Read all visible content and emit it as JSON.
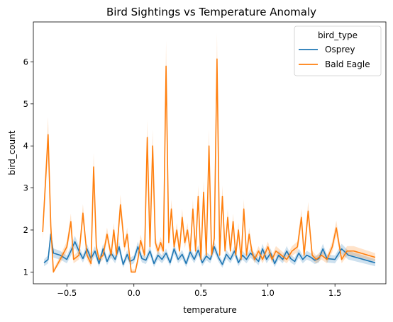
{
  "chart_data": {
    "type": "line",
    "title": "Bird Sightings vs Temperature Anomaly",
    "xlabel": "temperature",
    "ylabel": "bird_count",
    "xlim": [
      -0.75,
      1.88
    ],
    "ylim": [
      0.72,
      6.95
    ],
    "xticks": [
      -0.5,
      0.0,
      0.5,
      1.0,
      1.5
    ],
    "xtick_labels": [
      "−0.5",
      "0.0",
      "0.5",
      "1.0",
      "1.5"
    ],
    "yticks": [
      1,
      2,
      3,
      4,
      5,
      6
    ],
    "ytick_labels": [
      "1",
      "2",
      "3",
      "4",
      "5",
      "6"
    ],
    "grid": false,
    "legend": {
      "title": "bird_type",
      "placement": "top-right"
    },
    "series": [
      {
        "name": "Osprey",
        "color": "#1f77b4",
        "points": [
          [
            -0.67,
            1.22
          ],
          [
            -0.64,
            1.3
          ],
          [
            -0.62,
            1.9
          ],
          [
            -0.6,
            1.45
          ],
          [
            -0.55,
            1.4
          ],
          [
            -0.5,
            1.3
          ],
          [
            -0.47,
            1.5
          ],
          [
            -0.44,
            1.72
          ],
          [
            -0.41,
            1.5
          ],
          [
            -0.38,
            1.32
          ],
          [
            -0.35,
            1.55
          ],
          [
            -0.32,
            1.32
          ],
          [
            -0.29,
            1.5
          ],
          [
            -0.26,
            1.2
          ],
          [
            -0.23,
            1.55
          ],
          [
            -0.2,
            1.25
          ],
          [
            -0.17,
            1.45
          ],
          [
            -0.14,
            1.3
          ],
          [
            -0.11,
            1.6
          ],
          [
            -0.08,
            1.18
          ],
          [
            -0.05,
            1.42
          ],
          [
            -0.03,
            1.25
          ],
          [
            0.0,
            1.3
          ],
          [
            0.03,
            1.6
          ],
          [
            0.06,
            1.32
          ],
          [
            0.09,
            1.28
          ],
          [
            0.12,
            1.5
          ],
          [
            0.15,
            1.2
          ],
          [
            0.18,
            1.4
          ],
          [
            0.21,
            1.3
          ],
          [
            0.24,
            1.45
          ],
          [
            0.27,
            1.22
          ],
          [
            0.3,
            1.55
          ],
          [
            0.33,
            1.3
          ],
          [
            0.36,
            1.42
          ],
          [
            0.39,
            1.2
          ],
          [
            0.42,
            1.48
          ],
          [
            0.45,
            1.3
          ],
          [
            0.48,
            1.52
          ],
          [
            0.51,
            1.22
          ],
          [
            0.54,
            1.38
          ],
          [
            0.57,
            1.3
          ],
          [
            0.6,
            1.6
          ],
          [
            0.63,
            1.35
          ],
          [
            0.66,
            1.18
          ],
          [
            0.69,
            1.42
          ],
          [
            0.72,
            1.3
          ],
          [
            0.75,
            1.5
          ],
          [
            0.78,
            1.22
          ],
          [
            0.81,
            1.4
          ],
          [
            0.84,
            1.3
          ],
          [
            0.87,
            1.45
          ],
          [
            0.9,
            1.35
          ],
          [
            0.93,
            1.25
          ],
          [
            0.96,
            1.55
          ],
          [
            0.99,
            1.3
          ],
          [
            1.02,
            1.45
          ],
          [
            1.05,
            1.2
          ],
          [
            1.08,
            1.4
          ],
          [
            1.11,
            1.3
          ],
          [
            1.14,
            1.5
          ],
          [
            1.17,
            1.32
          ],
          [
            1.2,
            1.25
          ],
          [
            1.23,
            1.45
          ],
          [
            1.26,
            1.3
          ],
          [
            1.29,
            1.4
          ],
          [
            1.32,
            1.35
          ],
          [
            1.35,
            1.28
          ],
          [
            1.38,
            1.32
          ],
          [
            1.41,
            1.55
          ],
          [
            1.44,
            1.32
          ],
          [
            1.5,
            1.3
          ],
          [
            1.55,
            1.55
          ],
          [
            1.6,
            1.4
          ],
          [
            1.8,
            1.22
          ]
        ]
      },
      {
        "name": "Bald Eagle",
        "color": "#ff7f0e",
        "points": [
          [
            -0.68,
            1.95
          ],
          [
            -0.64,
            4.27
          ],
          [
            -0.62,
            2.1
          ],
          [
            -0.6,
            1.0
          ],
          [
            -0.55,
            1.3
          ],
          [
            -0.5,
            1.6
          ],
          [
            -0.47,
            2.2
          ],
          [
            -0.45,
            1.3
          ],
          [
            -0.41,
            1.4
          ],
          [
            -0.38,
            2.4
          ],
          [
            -0.35,
            1.4
          ],
          [
            -0.32,
            1.2
          ],
          [
            -0.3,
            3.5
          ],
          [
            -0.28,
            1.6
          ],
          [
            -0.26,
            1.3
          ],
          [
            -0.23,
            1.4
          ],
          [
            -0.2,
            1.9
          ],
          [
            -0.17,
            1.4
          ],
          [
            -0.15,
            2.0
          ],
          [
            -0.13,
            1.4
          ],
          [
            -0.1,
            2.6
          ],
          [
            -0.07,
            1.6
          ],
          [
            -0.05,
            1.9
          ],
          [
            -0.02,
            1.0
          ],
          [
            0.01,
            1.0
          ],
          [
            0.03,
            1.3
          ],
          [
            0.05,
            1.75
          ],
          [
            0.08,
            1.4
          ],
          [
            0.1,
            4.2
          ],
          [
            0.12,
            1.6
          ],
          [
            0.14,
            4.0
          ],
          [
            0.16,
            1.7
          ],
          [
            0.18,
            1.5
          ],
          [
            0.2,
            1.7
          ],
          [
            0.22,
            1.5
          ],
          [
            0.24,
            5.9
          ],
          [
            0.26,
            1.7
          ],
          [
            0.28,
            2.5
          ],
          [
            0.3,
            1.6
          ],
          [
            0.32,
            2.0
          ],
          [
            0.34,
            1.5
          ],
          [
            0.36,
            2.3
          ],
          [
            0.38,
            1.7
          ],
          [
            0.4,
            2.0
          ],
          [
            0.42,
            1.5
          ],
          [
            0.44,
            2.5
          ],
          [
            0.46,
            1.5
          ],
          [
            0.48,
            2.8
          ],
          [
            0.5,
            1.3
          ],
          [
            0.52,
            2.9
          ],
          [
            0.54,
            1.4
          ],
          [
            0.56,
            4.0
          ],
          [
            0.58,
            1.4
          ],
          [
            0.6,
            1.8
          ],
          [
            0.62,
            6.07
          ],
          [
            0.64,
            1.4
          ],
          [
            0.66,
            2.8
          ],
          [
            0.68,
            1.5
          ],
          [
            0.7,
            2.3
          ],
          [
            0.72,
            1.5
          ],
          [
            0.74,
            2.2
          ],
          [
            0.76,
            1.4
          ],
          [
            0.78,
            2.0
          ],
          [
            0.8,
            1.3
          ],
          [
            0.82,
            2.5
          ],
          [
            0.84,
            1.4
          ],
          [
            0.86,
            1.9
          ],
          [
            0.88,
            1.5
          ],
          [
            0.9,
            1.3
          ],
          [
            0.93,
            1.5
          ],
          [
            0.96,
            1.3
          ],
          [
            1.0,
            1.6
          ],
          [
            1.03,
            1.3
          ],
          [
            1.06,
            1.5
          ],
          [
            1.1,
            1.4
          ],
          [
            1.14,
            1.3
          ],
          [
            1.18,
            1.5
          ],
          [
            1.22,
            1.6
          ],
          [
            1.25,
            2.3
          ],
          [
            1.27,
            1.4
          ],
          [
            1.3,
            2.45
          ],
          [
            1.33,
            1.4
          ],
          [
            1.36,
            1.3
          ],
          [
            1.4,
            1.4
          ],
          [
            1.44,
            1.3
          ],
          [
            1.48,
            1.6
          ],
          [
            1.51,
            2.05
          ],
          [
            1.55,
            1.3
          ],
          [
            1.59,
            1.5
          ],
          [
            1.64,
            1.5
          ],
          [
            1.8,
            1.35
          ]
        ]
      }
    ]
  }
}
